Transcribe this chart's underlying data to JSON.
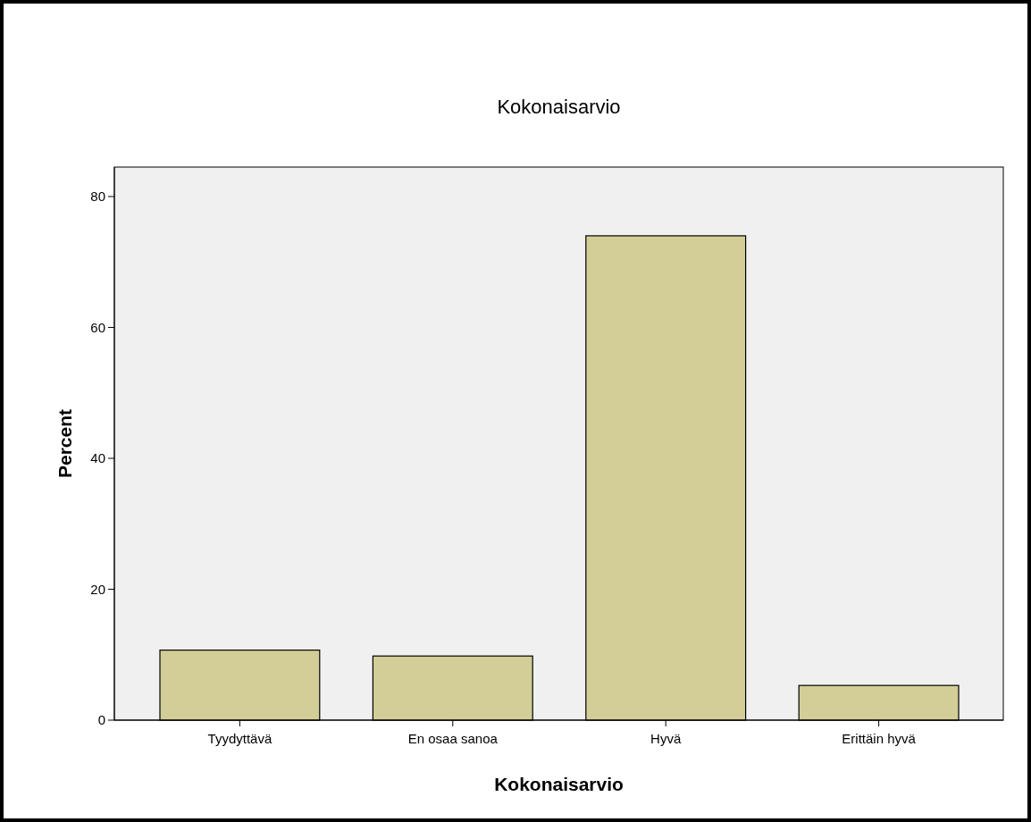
{
  "chart_data": {
    "type": "bar",
    "title": "Kokonaisarvio",
    "xlabel": "Kokonaisarvio",
    "ylabel": "Percent",
    "categories": [
      "Tyydyttävä",
      "En osaa sanoa",
      "Hyvä",
      "Erittäin hyvä"
    ],
    "values": [
      10.7,
      9.8,
      74.0,
      5.3
    ],
    "color": "#d3ce97",
    "ylim": [
      0,
      84.5
    ],
    "yticks": [
      0,
      20,
      40,
      60,
      80
    ]
  }
}
